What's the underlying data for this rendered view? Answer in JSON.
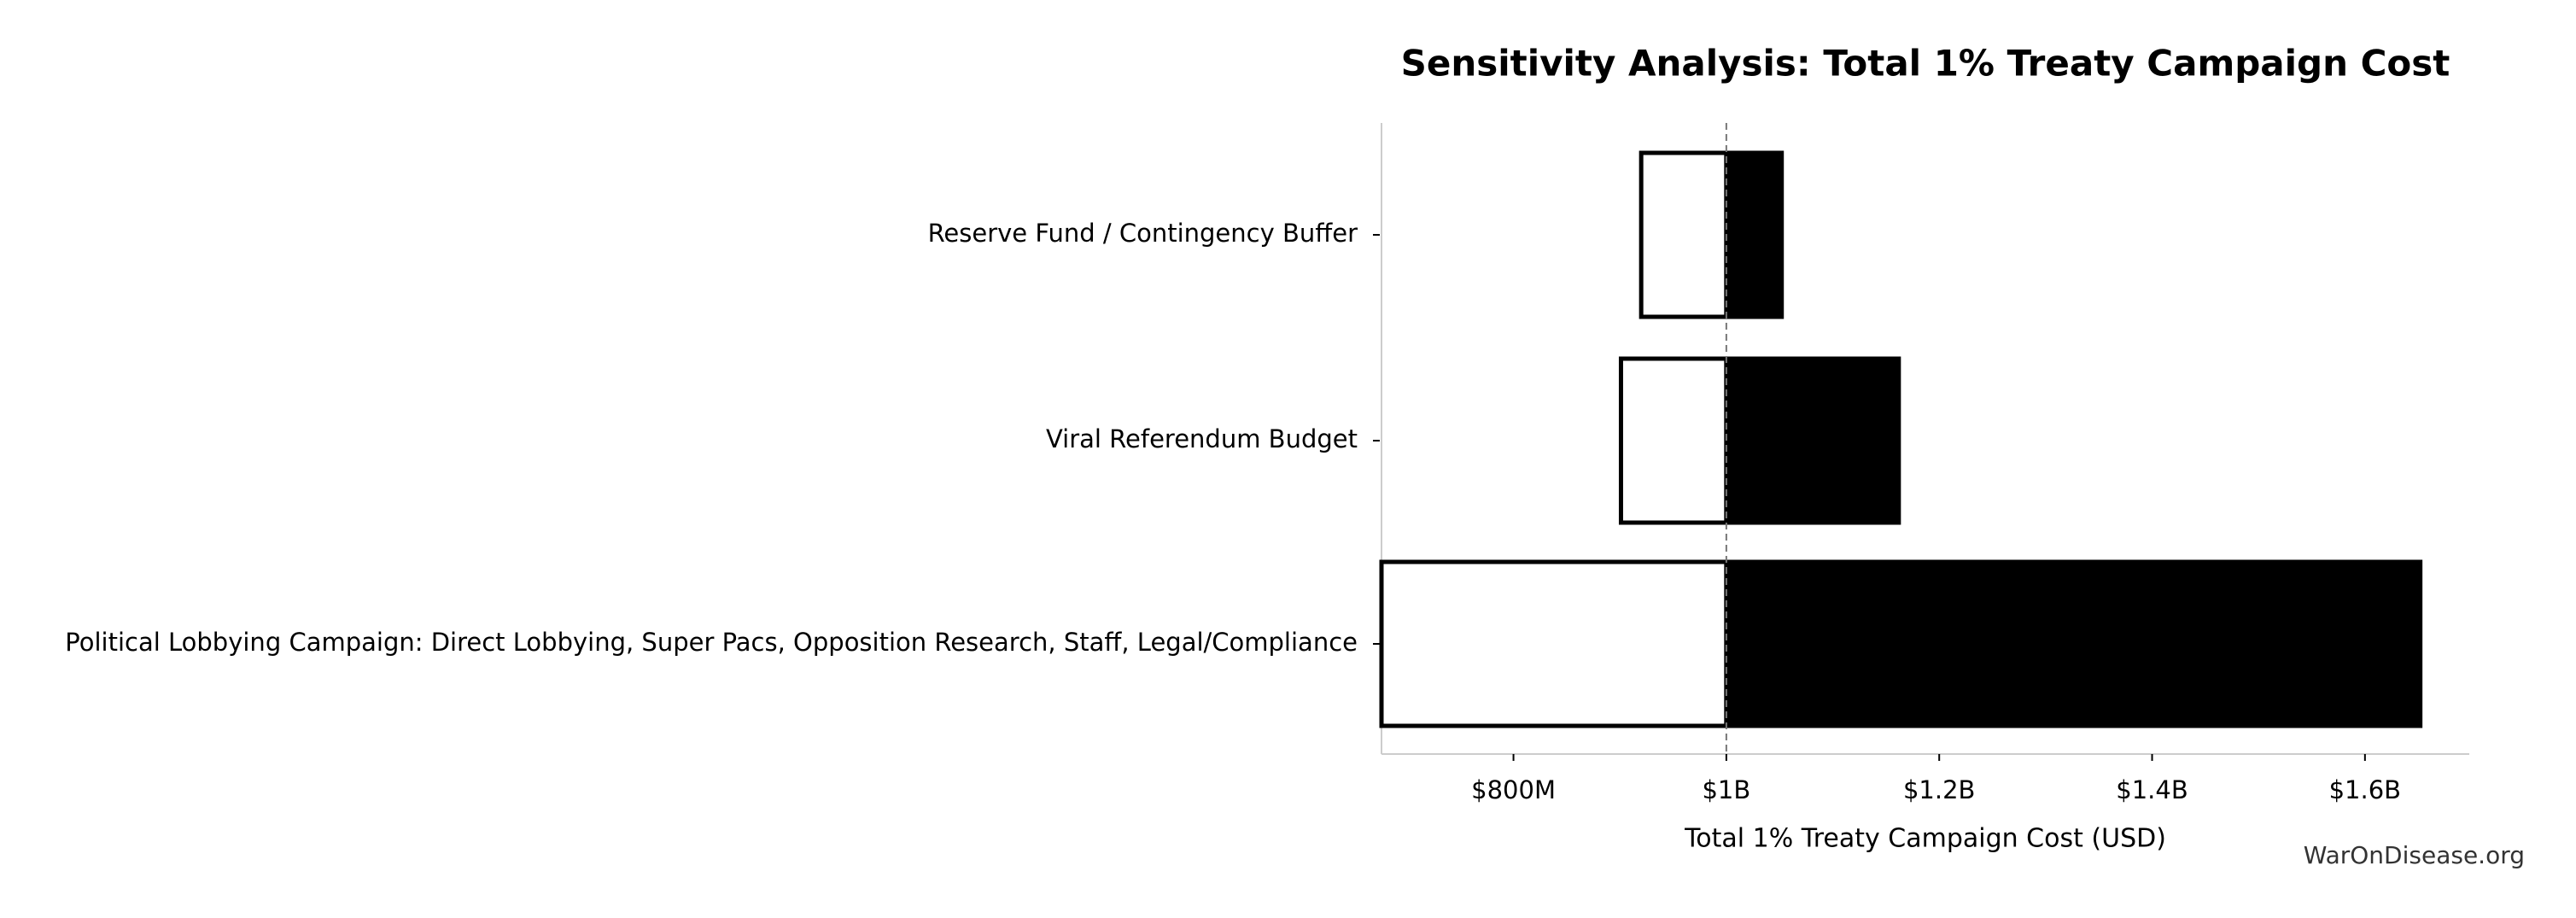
{
  "chart_data": {
    "type": "tornado",
    "title": "Sensitivity Analysis: Total 1% Treaty Campaign Cost",
    "x_label": "Total 1% Treaty Campaign Cost (USD)",
    "watermark": "WarOnDisease.org",
    "categories": [
      "Reserve Fund / Contingency Buffer",
      "Viral Referendum Budget",
      "Political Lobbying Campaign: Direct Lobbying, Super Pacs, Opposition Research, Staff, Legal/Compliance"
    ],
    "baseline": 1000000000,
    "low_values": [
      920000000,
      901000000,
      676000000
    ],
    "high_values": [
      1052000000,
      1162000000,
      1652000000
    ],
    "low_color": "#ffffff",
    "high_color": "#000000",
    "xlim": [
      676000000,
      1698000000
    ],
    "xticks": [
      {
        "value": 800000000,
        "label": "$800M"
      },
      {
        "value": 1000000000,
        "label": "$1B"
      },
      {
        "value": 1200000000,
        "label": "$1.2B"
      },
      {
        "value": 1400000000,
        "label": "$1.4B"
      },
      {
        "value": 1600000000,
        "label": "$1.6B"
      }
    ]
  }
}
